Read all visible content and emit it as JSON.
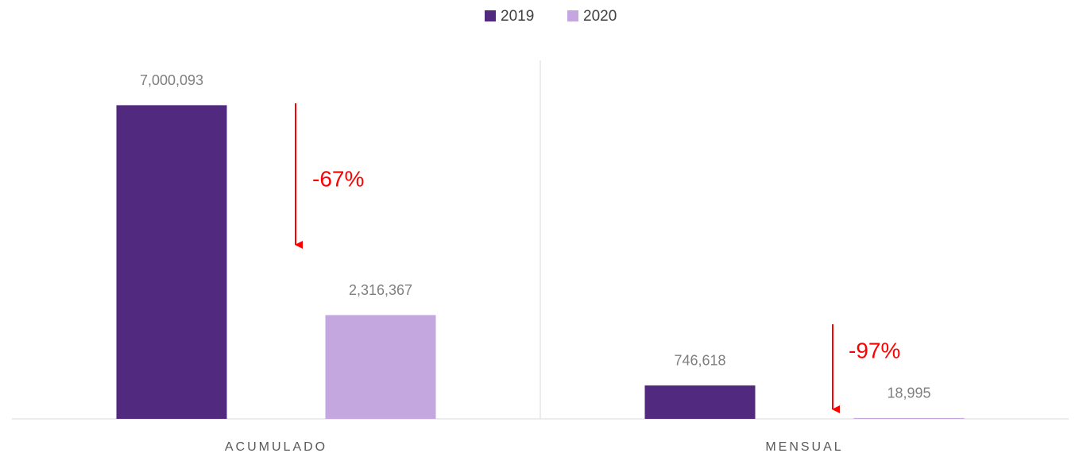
{
  "chart_data": {
    "type": "bar",
    "categories": [
      "ACUMULADO",
      "MENSUAL"
    ],
    "series": [
      {
        "name": "2019",
        "color": "#512a7f",
        "values": [
          7000093,
          746618
        ],
        "value_labels": [
          "7,000,093",
          "746,618"
        ]
      },
      {
        "name": "2020",
        "color": "#c5a7e0",
        "values": [
          2316367,
          18995
        ],
        "value_labels": [
          "2,316,367",
          "18,995"
        ]
      }
    ],
    "ylim": [
      0,
      8000000
    ],
    "legend": "top",
    "annotations": [
      {
        "text": "-67%",
        "color": "#ff0000"
      },
      {
        "text": "-97%",
        "color": "#ff0000"
      }
    ]
  }
}
